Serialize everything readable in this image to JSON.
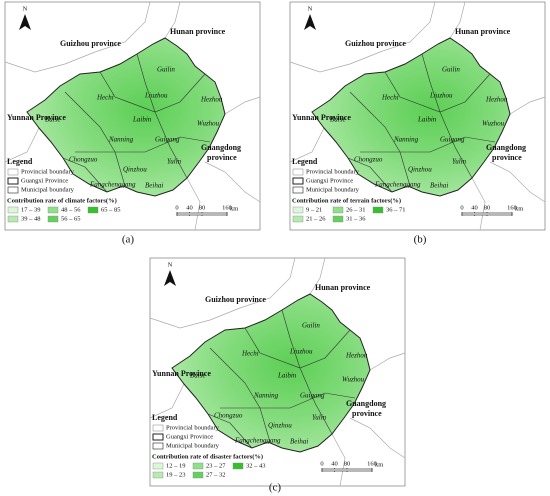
{
  "panels": [
    {
      "label": "(a)",
      "north": "N",
      "provinces": [
        [
          "Guizhou province"
        ],
        [
          "Hunan province"
        ],
        [
          "Yunnan Province"
        ],
        [
          "Guangdong",
          "province"
        ]
      ],
      "cities": [
        "Guilin",
        "Hechi",
        "Liuzhou",
        "Hezhou",
        "Baise",
        "Laibin",
        "Wuzhou",
        "Nanning",
        "Guigang",
        "Chongzuo",
        "Yulin",
        "Qinzhou",
        "Fangchenggang",
        "Beihai"
      ],
      "legend": {
        "title": "Legend",
        "items": [
          "Provincial boundary",
          "Guangxi Province",
          "Municipal boundary"
        ],
        "classes_title": "Contribution rate of climate factors(%)",
        "classes": [
          "17 – 39",
          "39 – 48",
          "48 – 56",
          "56 – 65",
          "65 – 85"
        ]
      },
      "scale": {
        "ticks": [
          0,
          40,
          80,
          160
        ],
        "unit": "km"
      }
    },
    {
      "label": "(b)",
      "north": "N",
      "provinces": [
        [
          "Guizhou province"
        ],
        [
          "Hunan province"
        ],
        [
          "Yunnan Province"
        ],
        [
          "Guangdong",
          "province"
        ]
      ],
      "cities": [
        "Guilin",
        "Hechi",
        "Liuzhou",
        "Hezhou",
        "Baise",
        "Laibin",
        "Wuzhou",
        "Nanning",
        "Guigang",
        "Chongzuo",
        "Yulin",
        "Qinzhou",
        "Fangchenggang",
        "Beihai"
      ],
      "legend": {
        "title": "Legend",
        "items": [
          "Provincial boundary",
          "Guangxi Province",
          "Municipal boundary"
        ],
        "classes_title": "Contribution rate of terrain factors(%)",
        "classes": [
          "9 – 21",
          "21 – 26",
          "26 – 31",
          "31 – 36",
          "36 – 71"
        ]
      },
      "scale": {
        "ticks": [
          0,
          40,
          80,
          160
        ],
        "unit": "km"
      }
    },
    {
      "label": "(c)",
      "north": "N",
      "provinces": [
        [
          "Guizhou province"
        ],
        [
          "Hunan province"
        ],
        [
          "Yunnan Province"
        ],
        [
          "Guangdong",
          "province"
        ]
      ],
      "cities": [
        "Guilin",
        "Hechi",
        "Liuzhou",
        "Hezhou",
        "Baise",
        "Laibin",
        "Wuzhou",
        "Nanning",
        "Guigang",
        "Chongzuo",
        "Yulin",
        "Qinzhou",
        "Fangchenggang",
        "Beihai"
      ],
      "legend": {
        "title": "Legend",
        "items": [
          "Provincial boundary",
          "Guangxi Province",
          "Municipal boundary"
        ],
        "classes_title": "Contribution rate of disaster factors(%)",
        "classes": [
          "12 – 19",
          "19 – 23",
          "23 – 27",
          "27 – 32",
          "32 – 43"
        ]
      },
      "scale": {
        "ticks": [
          0,
          40,
          80,
          160
        ],
        "unit": "km"
      }
    }
  ]
}
